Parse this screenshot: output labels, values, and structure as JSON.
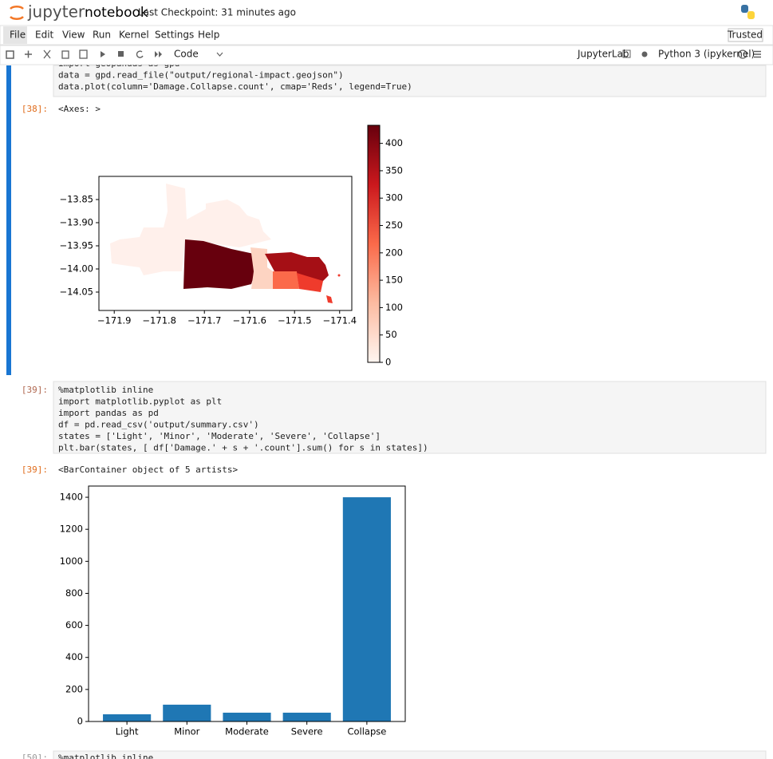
{
  "header": {
    "logo": "jupyter",
    "title": "notebook",
    "checkpoint": "Last Checkpoint: 31 minutes ago"
  },
  "menu": [
    "File",
    "Edit",
    "View",
    "Run",
    "Kernel",
    "Settings",
    "Help"
  ],
  "trusted": "Trusted",
  "toolbar": {
    "cell_type": "Code",
    "jupyterlab": "JupyterLab",
    "kernel": "Python 3 (ipykernel)"
  },
  "cells": [
    {
      "code": [
        "import geopandas as gpd",
        "data = gpd.read_file(\"output/regional-impact.geojson\")",
        "data.plot(column='Damage.Collapse.count', cmap='Reds', legend=True)"
      ]
    },
    {
      "prompt": "[38]:",
      "output": "<Axes: >"
    },
    {
      "prompt": "[39]:",
      "code": [
        "%matplotlib inline",
        "import matplotlib.pyplot as plt",
        "import pandas as pd",
        "df = pd.read_csv('output/summary.csv')",
        "states = ['Light', 'Minor', 'Moderate', 'Severe', 'Collapse']",
        "plt.bar(states, [ df['Damage.' + s + '.count'].sum() for s in states])"
      ]
    },
    {
      "prompt": "[39]:",
      "output": "<BarContainer object of 5 artists>"
    },
    {
      "prompt": "[50]:",
      "code": [
        "%matplotlib inline"
      ]
    }
  ],
  "map": {
    "xlim": [
      -171.934,
      -171.373
    ],
    "ylim": [
      -14.0897,
      -13.8
    ],
    "xticks": [
      {
        "value": -171.9,
        "label": "−171.9"
      },
      {
        "value": -171.8,
        "label": "−171.8"
      },
      {
        "value": -171.7,
        "label": "−171.7"
      },
      {
        "value": -171.6,
        "label": "−171.6"
      },
      {
        "value": -171.5,
        "label": "−171.5"
      },
      {
        "value": -171.4,
        "label": "−171.4"
      }
    ],
    "yticks": [
      {
        "value": -13.85,
        "label": "−13.85"
      },
      {
        "value": -13.9,
        "label": "−13.90"
      },
      {
        "value": -13.95,
        "label": "−13.95"
      },
      {
        "value": -14.0,
        "label": "−14.00"
      },
      {
        "value": -14.05,
        "label": "−14.05"
      }
    ],
    "colorbar": {
      "lim": [
        0,
        433
      ],
      "ticks": [
        0,
        50,
        100,
        150,
        200,
        250,
        300,
        350,
        400
      ]
    }
  },
  "chart_data": {
    "type": "bar",
    "categories": [
      "Light",
      "Minor",
      "Moderate",
      "Severe",
      "Collapse"
    ],
    "values": [
      45,
      105,
      55,
      55,
      1400
    ],
    "color": "#1f77b4",
    "ylim": [
      0,
      1470
    ],
    "yticks": [
      0,
      200,
      400,
      600,
      800,
      1000,
      1200,
      1400
    ]
  }
}
